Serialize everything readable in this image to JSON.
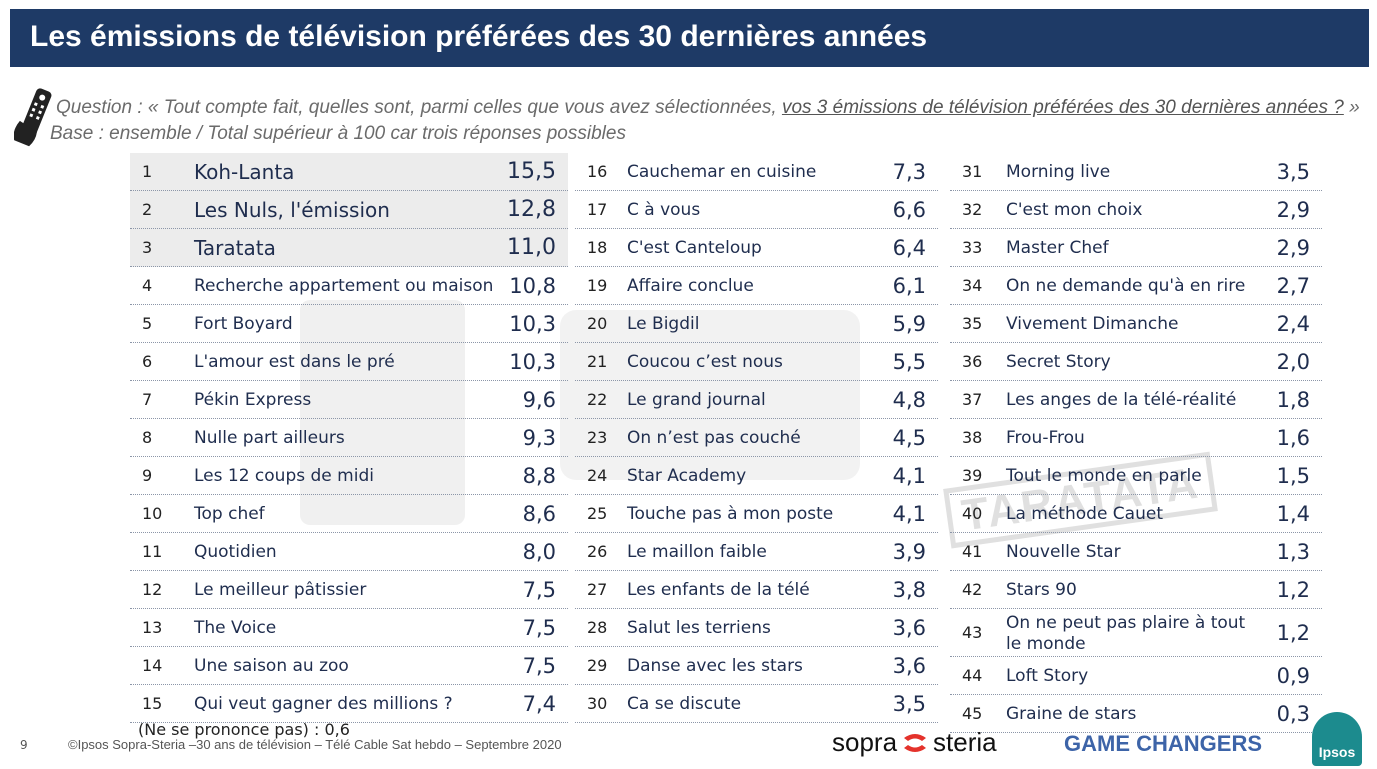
{
  "title": "Les émissions de télévision préférées des 30 dernières années",
  "question_prefix": "Question : « Tout compte fait, quelles sont, parmi celles que vous avez sélectionnées, ",
  "question_emphasis": "vos 3 émissions de télévision préférées des 30 dernières années ?",
  "question_suffix": " »",
  "base": "Base : ensemble / Total supérieur à 100 car trois réponses possibles",
  "columns": [
    [
      {
        "rank": "1",
        "name": "Koh-Lanta",
        "value": "15,5"
      },
      {
        "rank": "2",
        "name": "Les Nuls, l'émission",
        "value": "12,8"
      },
      {
        "rank": "3",
        "name": "Taratata",
        "value": "11,0"
      },
      {
        "rank": "4",
        "name": "Recherche appartement ou maison",
        "value": "10,8"
      },
      {
        "rank": "5",
        "name": "Fort Boyard",
        "value": "10,3"
      },
      {
        "rank": "6",
        "name": "L'amour est dans le pré",
        "value": "10,3"
      },
      {
        "rank": "7",
        "name": "Pékin Express",
        "value": "9,6"
      },
      {
        "rank": "8",
        "name": "Nulle part ailleurs",
        "value": "9,3"
      },
      {
        "rank": "9",
        "name": "Les 12 coups de midi",
        "value": "8,8"
      },
      {
        "rank": "10",
        "name": "Top chef",
        "value": "8,6"
      },
      {
        "rank": "11",
        "name": "Quotidien",
        "value": "8,0"
      },
      {
        "rank": "12",
        "name": "Le meilleur pâtissier",
        "value": "7,5"
      },
      {
        "rank": "13",
        "name": "The Voice",
        "value": "7,5"
      },
      {
        "rank": "14",
        "name": "Une saison au zoo",
        "value": "7,5"
      },
      {
        "rank": "15",
        "name": "Qui veut gagner des millions ?",
        "value": "7,4"
      }
    ],
    [
      {
        "rank": "16",
        "name": "Cauchemar en cuisine",
        "value": "7,3"
      },
      {
        "rank": "17",
        "name": "C à vous",
        "value": "6,6"
      },
      {
        "rank": "18",
        "name": "C'est Canteloup",
        "value": "6,4"
      },
      {
        "rank": "19",
        "name": "Affaire conclue",
        "value": "6,1"
      },
      {
        "rank": "20",
        "name": "Le Bigdil",
        "value": "5,9"
      },
      {
        "rank": "21",
        "name": "Coucou c’est nous",
        "value": "5,5"
      },
      {
        "rank": "22",
        "name": "Le grand journal",
        "value": "4,8"
      },
      {
        "rank": "23",
        "name": "On n’est pas couché",
        "value": "4,5"
      },
      {
        "rank": "24",
        "name": "Star Academy",
        "value": "4,1"
      },
      {
        "rank": "25",
        "name": "Touche pas à mon poste",
        "value": "4,1"
      },
      {
        "rank": "26",
        "name": "Le maillon faible",
        "value": "3,9"
      },
      {
        "rank": "27",
        "name": "Les enfants de la télé",
        "value": "3,8"
      },
      {
        "rank": "28",
        "name": "Salut les terriens",
        "value": "3,6"
      },
      {
        "rank": "29",
        "name": "Danse avec les stars",
        "value": "3,6"
      },
      {
        "rank": "30",
        "name": "Ca se discute",
        "value": "3,5"
      }
    ],
    [
      {
        "rank": "31",
        "name": "Morning live",
        "value": "3,5"
      },
      {
        "rank": "32",
        "name": "C'est mon choix",
        "value": "2,9"
      },
      {
        "rank": "33",
        "name": "Master Chef",
        "value": "2,9"
      },
      {
        "rank": "34",
        "name": "On ne demande qu'à en rire",
        "value": "2,7"
      },
      {
        "rank": "35",
        "name": "Vivement Dimanche",
        "value": "2,4"
      },
      {
        "rank": "36",
        "name": "Secret Story",
        "value": "2,0"
      },
      {
        "rank": "37",
        "name": "Les anges de la télé-réalité",
        "value": "1,8"
      },
      {
        "rank": "38",
        "name": "Frou-Frou",
        "value": "1,6"
      },
      {
        "rank": "39",
        "name": "Tout le monde en parle",
        "value": "1,5"
      },
      {
        "rank": "40",
        "name": "La méthode Cauet",
        "value": "1,4"
      },
      {
        "rank": "41",
        "name": "Nouvelle Star",
        "value": "1,3"
      },
      {
        "rank": "42",
        "name": "Stars 90",
        "value": "1,2"
      },
      {
        "rank": "43",
        "name": "On ne peut pas plaire à tout le monde",
        "value": "1,2"
      },
      {
        "rank": "44",
        "name": "Loft Story",
        "value": "0,9"
      },
      {
        "rank": "45",
        "name": "Graine de stars",
        "value": "0,3"
      }
    ]
  ],
  "nsp": "(Ne se prononce pas) : 0,6",
  "page_number": "9",
  "footer": "©Ipsos Sopra-Steria –30 ans de télévision – Télé Cable Sat hebdo – Septembre 2020",
  "logos": {
    "sopra_left": "sopra",
    "sopra_right": "steria",
    "game_changers": "GAME CHANGERS",
    "ipsos": "Ipsos",
    "watermark": "TARATATA"
  },
  "colors": {
    "title_bar": "#1e3a66",
    "text": "#1f2d4e",
    "highlight_row": "#ececec",
    "sopra_red": "#e4322b",
    "game_changers": "#3d64a8",
    "ipsos": "#1c8b8e"
  }
}
